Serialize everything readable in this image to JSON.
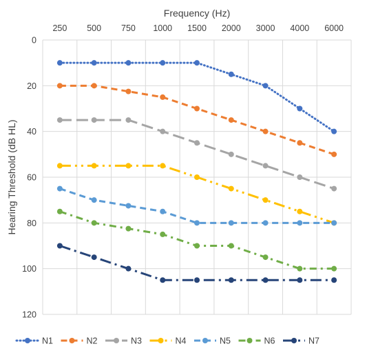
{
  "chart_data": {
    "type": "line",
    "xlabel": "Frequency (Hz)",
    "ylabel": "Hearing Threshold (dB HL)",
    "categories": [
      "250",
      "500",
      "750",
      "1000",
      "1500",
      "2000",
      "3000",
      "4000",
      "6000"
    ],
    "x_axis_position": "top",
    "y_reversed": true,
    "ylim": [
      0,
      120
    ],
    "yticks": [
      "0",
      "20",
      "40",
      "60",
      "80",
      "100",
      "120"
    ],
    "grid": true,
    "legend_position": "bottom",
    "series": [
      {
        "name": "N1",
        "color": "#4472C4",
        "dash": "dotted",
        "values": [
          10,
          10,
          10,
          10,
          10,
          15,
          20,
          30,
          40
        ]
      },
      {
        "name": "N2",
        "color": "#ED7D31",
        "dash": "dashed",
        "values": [
          20,
          20,
          22.5,
          25,
          30,
          35,
          40,
          45,
          50
        ]
      },
      {
        "name": "N3",
        "color": "#A5A5A5",
        "dash": "long-dash",
        "values": [
          35,
          35,
          35,
          40,
          45,
          50,
          55,
          60,
          65
        ]
      },
      {
        "name": "N4",
        "color": "#FFC000",
        "dash": "long-dash-dot-dot",
        "values": [
          55,
          55,
          55,
          55,
          60,
          65,
          70,
          75,
          80
        ]
      },
      {
        "name": "N5",
        "color": "#5B9BD5",
        "dash": "dashed",
        "values": [
          65,
          70,
          72.5,
          75,
          80,
          80,
          80,
          80,
          80
        ]
      },
      {
        "name": "N6",
        "color": "#70AD47",
        "dash": "dash-dot",
        "values": [
          75,
          80,
          82.5,
          85,
          90,
          90,
          95,
          100,
          100
        ]
      },
      {
        "name": "N7",
        "color": "#264478",
        "dash": "long-dash-dot",
        "values": [
          90,
          95,
          100,
          105,
          105,
          105,
          105,
          105,
          105
        ]
      }
    ]
  }
}
